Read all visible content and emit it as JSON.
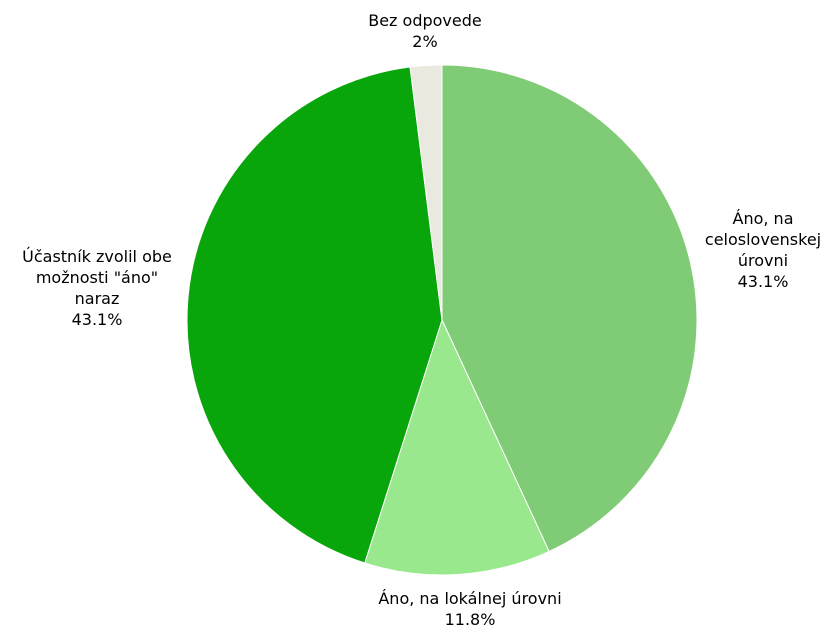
{
  "chart_data": {
    "type": "pie",
    "slices": [
      {
        "label": "Áno, na celoslovenskej úrovni",
        "label_lines": [
          "Áno, na",
          "celoslovenskej",
          "úrovni"
        ],
        "value": 43.1,
        "value_label": "43.1%",
        "color": "#80CB75"
      },
      {
        "label": "Áno, na lokálnej úrovni",
        "label_lines": [
          "Áno, na lokálnej úrovni"
        ],
        "value": 11.8,
        "value_label": "11.8%",
        "color": "#99E88D"
      },
      {
        "label": "Účastník zvolil obe možnosti \"áno\" naraz",
        "label_lines": [
          "Účastník zvolil obe",
          "možnosti \"áno\"",
          "naraz"
        ],
        "value": 43.1,
        "value_label": "43.1%",
        "color": "#08A60B"
      },
      {
        "label": "Bez odpovede",
        "label_lines": [
          "Bez odpovede"
        ],
        "value": 2,
        "value_label": "2%",
        "color": "#E9E9E0"
      }
    ],
    "start": "top",
    "direction": "clockwise",
    "legend": "none"
  }
}
